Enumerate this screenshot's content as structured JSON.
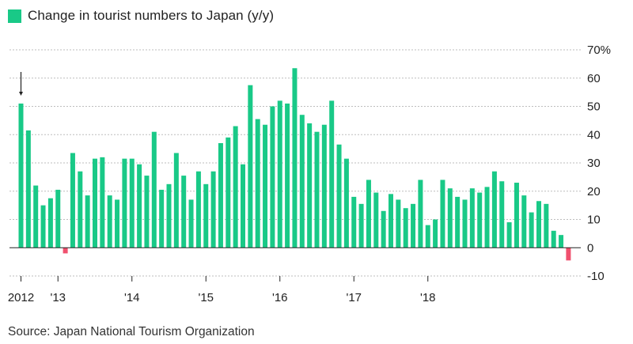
{
  "legend": {
    "label": "Change in tourist numbers to Japan (y/y)",
    "color": "#19c987"
  },
  "source": "Source: Japan National Tourism Organization",
  "chart_data": {
    "type": "bar",
    "title": "",
    "xlabel": "",
    "ylabel": "",
    "ylim": [
      -10,
      70
    ],
    "yticks": [
      "70%",
      "60",
      "50",
      "40",
      "30",
      "20",
      "10",
      "0",
      "-10"
    ],
    "ytick_values": [
      70,
      60,
      50,
      40,
      30,
      20,
      10,
      0,
      -10
    ],
    "grid": true,
    "legend_position": "top-left",
    "positive_color": "#19c987",
    "negative_color": "#f0506e",
    "x_tick_labels": [
      {
        "label": "2012",
        "index": 0
      },
      {
        "label": "'13",
        "index": 5
      },
      {
        "label": "'14",
        "index": 15
      },
      {
        "label": "'15",
        "index": 25
      },
      {
        "label": "'16",
        "index": 35
      },
      {
        "label": "'17",
        "index": 45
      },
      {
        "label": "'18",
        "index": 55
      }
    ],
    "annotation": "arrow above first bar",
    "values": [
      51,
      41.5,
      22,
      15,
      17.5,
      20.5,
      -2,
      33.5,
      27,
      18.5,
      31.5,
      32,
      18.5,
      17,
      31.5,
      31.5,
      29.5,
      25.5,
      41,
      20.5,
      22.5,
      33.5,
      25.5,
      17,
      27,
      22.5,
      27,
      37,
      39,
      43,
      29.5,
      57.5,
      45.5,
      43.5,
      50,
      52,
      51,
      63.5,
      47,
      44,
      41,
      43.5,
      52,
      36.5,
      31.5,
      18,
      15.5,
      24,
      19.5,
      13,
      19,
      17,
      14,
      15.5,
      24,
      8,
      10,
      24,
      21,
      18,
      17,
      21,
      19.5,
      21.5,
      27,
      23.5,
      9,
      23,
      18.5,
      12.5,
      16.5,
      15.5,
      6,
      4.5,
      -4.5
    ]
  }
}
